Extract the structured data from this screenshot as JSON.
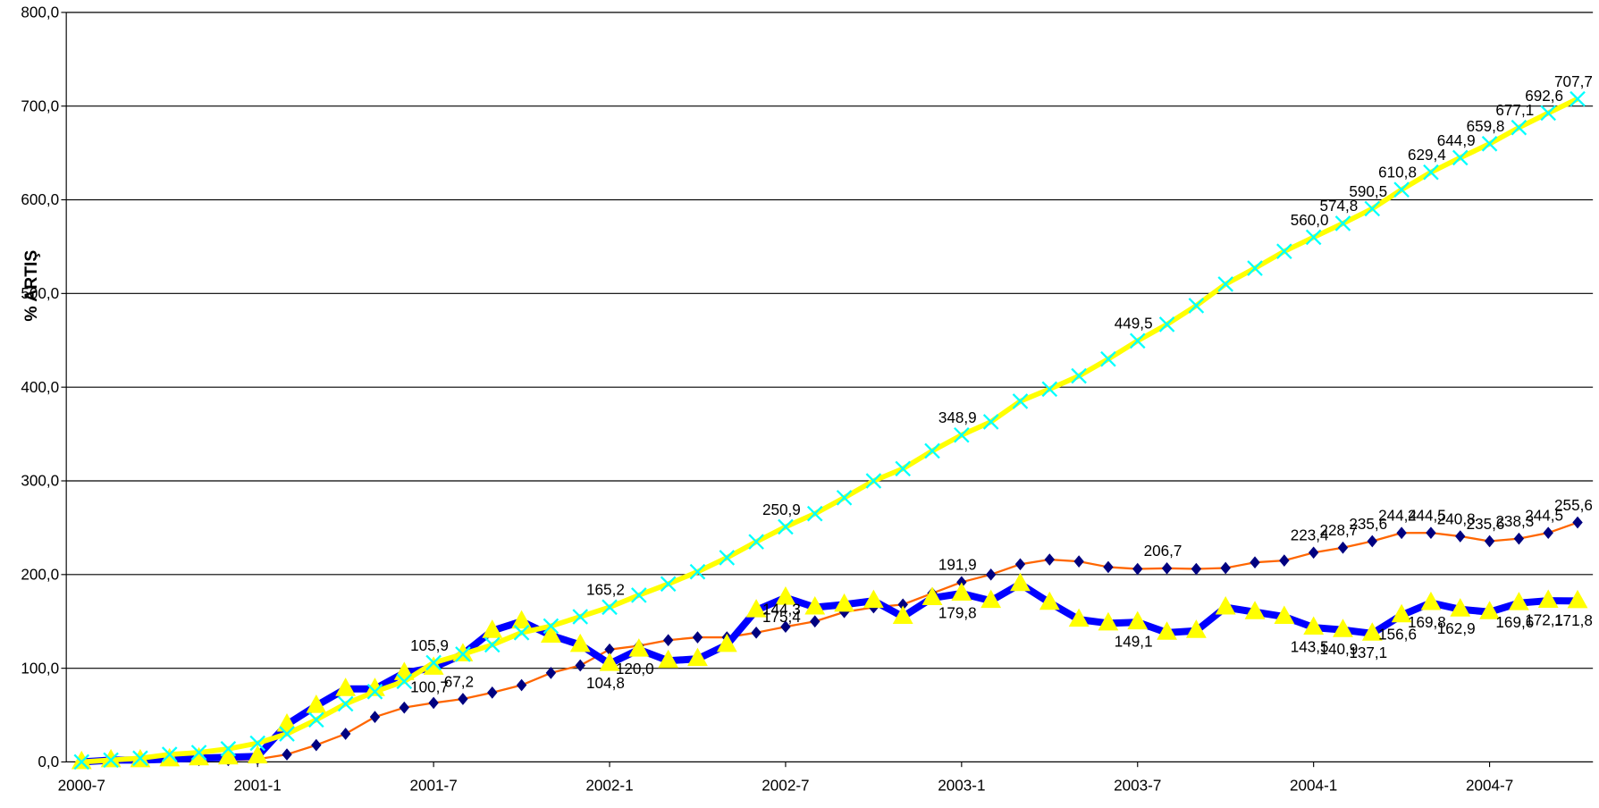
{
  "chart_data": {
    "type": "line",
    "y_label": "% ARTIŞ",
    "categories": [
      "2000-7",
      null,
      null,
      null,
      null,
      null,
      "2001-1",
      null,
      null,
      null,
      null,
      null,
      "2001-7",
      null,
      null,
      null,
      null,
      null,
      "2002-1",
      null,
      null,
      null,
      null,
      null,
      "2002-7",
      null,
      null,
      null,
      null,
      null,
      "2003-1",
      null,
      null,
      null,
      null,
      null,
      "2003-7",
      null,
      null,
      null,
      null,
      null,
      "2004-1",
      null,
      null,
      null,
      null,
      null,
      "2004-7",
      null,
      null,
      null
    ],
    "ylim": [
      0,
      800
    ],
    "yticks": [
      {
        "value": 0,
        "label": "0,0"
      },
      {
        "value": 100,
        "label": "100,0"
      },
      {
        "value": 200,
        "label": "200,0"
      },
      {
        "value": 300,
        "label": "300,0"
      },
      {
        "value": 400,
        "label": "400,0"
      },
      {
        "value": 500,
        "label": "500,0"
      },
      {
        "value": 600,
        "label": "600,0"
      },
      {
        "value": 700,
        "label": "700,0"
      },
      {
        "value": 800,
        "label": "800,0"
      }
    ],
    "grid": true,
    "series": [
      {
        "color": "#ff6600",
        "line_width": 2,
        "marker": "diamond",
        "marker_color": "#000080",
        "label_side": "above",
        "values": [
          0,
          2,
          2,
          2,
          2,
          2,
          3,
          8,
          18,
          30,
          48,
          58,
          63,
          67.2,
          74,
          82,
          95,
          103,
          120,
          124,
          130,
          133,
          133,
          138,
          144.3,
          150,
          160,
          165,
          168,
          180,
          191.9,
          200,
          211,
          216,
          214,
          208,
          206,
          206.7,
          206,
          207,
          213,
          215,
          223.4,
          228.7,
          235.6,
          244.4,
          244.5,
          240.8,
          235.6,
          238.3,
          244.5,
          255.6
        ],
        "value_labels": [
          null,
          null,
          null,
          null,
          null,
          null,
          null,
          null,
          null,
          null,
          null,
          null,
          null,
          "67,2",
          null,
          null,
          null,
          null,
          null,
          null,
          null,
          null,
          null,
          null,
          "144,3",
          null,
          null,
          null,
          null,
          null,
          "191,9",
          null,
          null,
          null,
          null,
          null,
          null,
          "206,7",
          null,
          null,
          null,
          null,
          "223,4",
          "228,7",
          "235,6",
          "244,4",
          "244,5",
          "240,8",
          "235,6",
          "238,3",
          "244,5",
          "255,6"
        ]
      },
      {
        "color": "#0000ff",
        "line_width": 7,
        "marker": "triangle",
        "marker_color": "#ffff00",
        "label_side": "below",
        "values": [
          0,
          2,
          2,
          3,
          4,
          5,
          6,
          40,
          60,
          78,
          78,
          95,
          100.7,
          115,
          140,
          150,
          135,
          125,
          104.8,
          120.0,
          108,
          110,
          125,
          162,
          175.4,
          165,
          168,
          172,
          155,
          175,
          179.8,
          172,
          190,
          170,
          152,
          148,
          149.1,
          138,
          140,
          165,
          160,
          155,
          143.5,
          140.9,
          137.1,
          156.6,
          169.8,
          162.9,
          160,
          169.6,
          172.1,
          171.8
        ],
        "value_labels": [
          null,
          null,
          null,
          null,
          null,
          null,
          null,
          null,
          null,
          null,
          null,
          null,
          "100,7",
          null,
          null,
          null,
          null,
          null,
          "104,8",
          "120,0",
          null,
          null,
          null,
          null,
          "175,4",
          null,
          null,
          null,
          null,
          null,
          "179,8",
          null,
          null,
          null,
          null,
          null,
          "149,1",
          null,
          null,
          null,
          null,
          null,
          "143,5",
          "140,9",
          "137,1",
          "156,6",
          "169,8",
          "162,9",
          null,
          "169,6",
          "172,1",
          "171,8"
        ]
      },
      {
        "color": "#ffff00",
        "line_width": 5,
        "marker": "x",
        "marker_color": "#00ffff",
        "label_side": "above",
        "values": [
          0,
          2,
          4,
          8,
          10,
          14,
          20,
          30,
          45,
          62,
          75,
          86,
          105.9,
          115,
          125,
          138,
          145,
          155,
          165.2,
          178,
          190,
          203,
          218,
          235,
          250.9,
          265,
          282,
          300,
          313,
          332,
          348.9,
          363,
          385,
          398,
          412,
          430,
          449.5,
          467,
          487,
          510,
          527,
          545,
          560.0,
          574.8,
          590.5,
          610.8,
          629.4,
          644.9,
          659.8,
          677.1,
          692.6,
          707.7
        ],
        "value_labels": [
          null,
          null,
          null,
          null,
          null,
          null,
          null,
          null,
          null,
          null,
          null,
          null,
          "105,9",
          null,
          null,
          null,
          null,
          null,
          "165,2",
          null,
          null,
          null,
          null,
          null,
          "250,9",
          null,
          null,
          null,
          null,
          null,
          "348,9",
          null,
          null,
          null,
          null,
          null,
          "449,5",
          null,
          null,
          null,
          null,
          null,
          "560,0",
          "574,8",
          "590,5",
          "610,8",
          "629,4",
          "644,9",
          "659,8",
          "677,1",
          "692,6",
          "707,7"
        ]
      }
    ]
  }
}
